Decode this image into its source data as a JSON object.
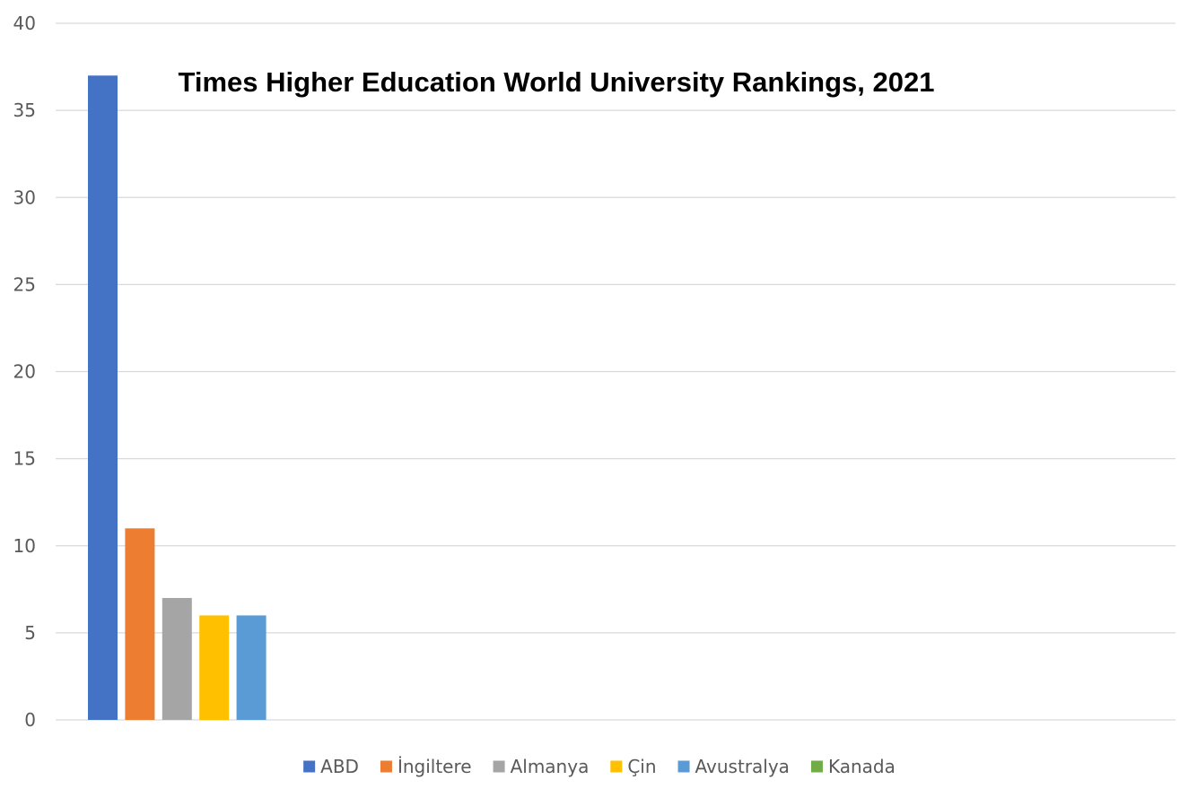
{
  "chart_data": {
    "type": "bar",
    "title": "Times Higher Education World University Rankings, 2021",
    "xlabel": "",
    "ylabel": "",
    "ylim": [
      0,
      40
    ],
    "yticks": [
      0,
      5,
      10,
      15,
      20,
      25,
      30,
      35,
      40
    ],
    "grid": true,
    "legend_position": "bottom",
    "series": [
      {
        "name": "ABD",
        "value": 37,
        "color": "#4472C4"
      },
      {
        "name": "İngiltere",
        "value": 11,
        "color": "#ED7D31"
      },
      {
        "name": "Almanya",
        "value": 7,
        "color": "#A5A5A5"
      },
      {
        "name": "Çin",
        "value": 6,
        "color": "#FFC000"
      },
      {
        "name": "Avustralya",
        "value": 6,
        "color": "#5B9BD5"
      },
      {
        "name": "Kanada",
        "value": 0,
        "color": "#70AD47"
      }
    ]
  }
}
